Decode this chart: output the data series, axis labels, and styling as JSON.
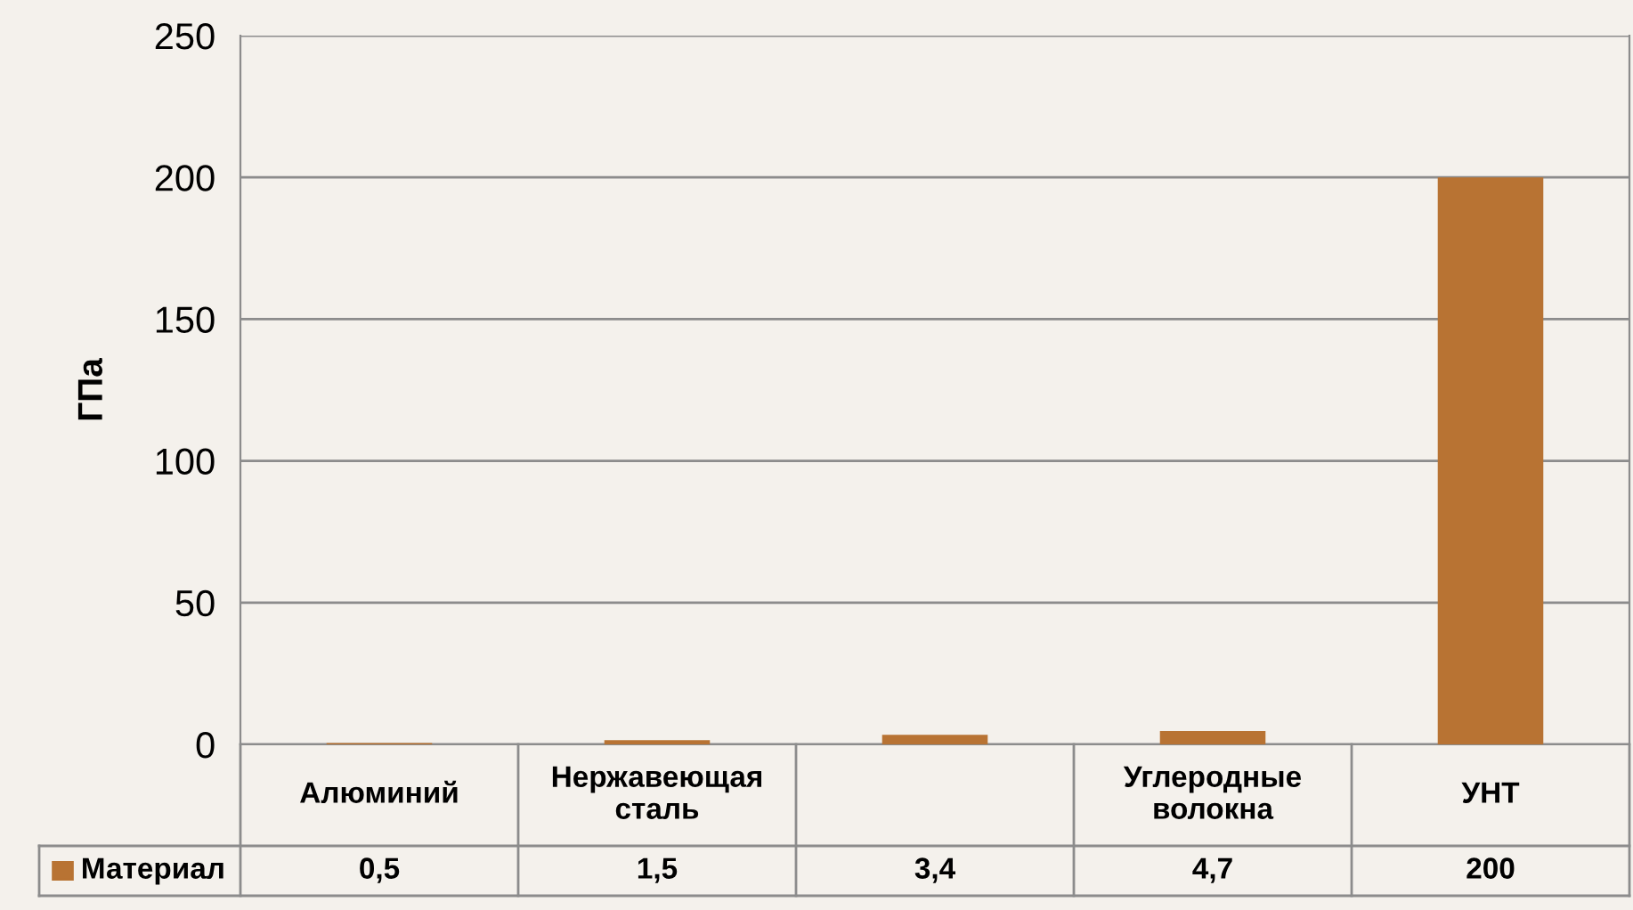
{
  "chart_data": {
    "type": "bar",
    "ylabel": "ГПа",
    "categories": [
      "Алюминий",
      "Нержавеющая\nсталь",
      null,
      "Углеродные\nволокна",
      "УНТ"
    ],
    "series": [
      {
        "name": "Материал",
        "color": "#b87333",
        "values": [
          0.5,
          1.5,
          3.4,
          4.7,
          200
        ],
        "value_labels": [
          "0,5",
          "1,5",
          "3,4",
          "4,7",
          "200"
        ]
      }
    ],
    "ylim": [
      0,
      250
    ],
    "yticks": [
      0,
      50,
      100,
      150,
      200,
      250
    ],
    "grid": "y",
    "legend": "bottom left"
  }
}
